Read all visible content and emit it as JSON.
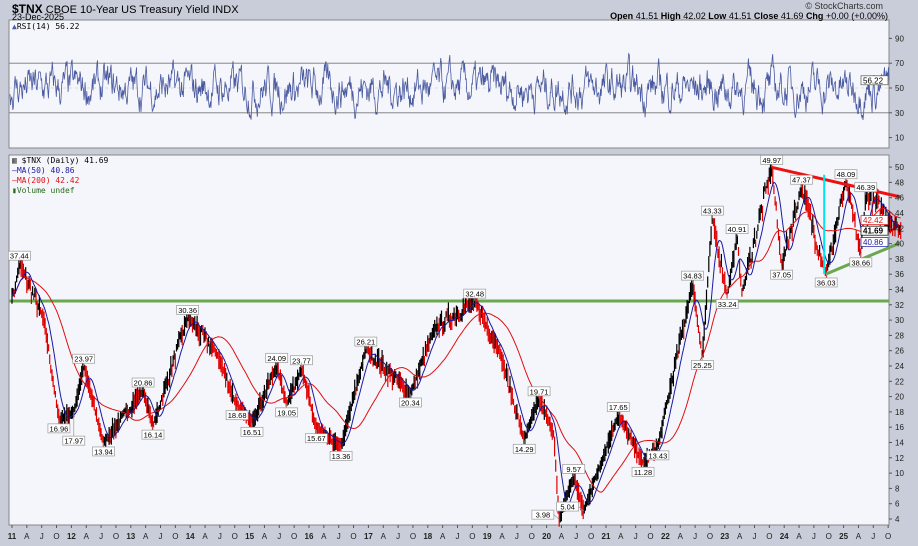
{
  "header": {
    "symbol": "$TNX",
    "name": "CBOE 10-Year US Treasury Yield INDX",
    "date": "23-Dec-2025",
    "watermark": "© StockCharts.com",
    "open_label": "Open",
    "open": "41.51",
    "high_label": "High",
    "high": "42.02",
    "low_label": "Low",
    "low": "41.51",
    "close_label": "Close",
    "close": "41.69",
    "chg_label": "Chg",
    "chg": "+0.00 (+0.00%)"
  },
  "rsi_panel": {
    "legend": "RSI(14) 56.22",
    "last_value": "56.22",
    "yticks": [
      10,
      30,
      50,
      70,
      90
    ],
    "reference_lines": [
      30,
      70
    ],
    "ylim": [
      0,
      100
    ],
    "color": "#4a5aa0"
  },
  "price_panel": {
    "legend_main": "$TNX (Daily) 41.69",
    "legend_ma50": "MA(50) 40.86",
    "legend_ma200": "MA(200) 42.42",
    "legend_volume": "Volume undef",
    "last_price": "41.69",
    "last_ma50": "40.86",
    "last_ma200": "42.42",
    "colors": {
      "up": "#000000",
      "down": "#e00000",
      "ma50": "#1a1aa0",
      "ma200": "#e01010",
      "support": "#6aa84f",
      "resistance": "#ee1111",
      "vertical": "#00e5ee"
    }
  },
  "x_axis": {
    "labels": [
      "11",
      "A",
      "J",
      "O",
      "12",
      "A",
      "J",
      "O",
      "13",
      "A",
      "J",
      "O",
      "14",
      "A",
      "J",
      "O",
      "15",
      "A",
      "J",
      "O",
      "16",
      "A",
      "J",
      "O",
      "17",
      "A",
      "J",
      "O",
      "18",
      "A",
      "J",
      "O",
      "19",
      "A",
      "J",
      "O",
      "20",
      "A",
      "J",
      "O",
      "21",
      "A",
      "J",
      "O",
      "22",
      "A",
      "J",
      "O",
      "23",
      "A",
      "J",
      "O",
      "24",
      "A",
      "J",
      "O",
      "25",
      "A",
      "J",
      "O"
    ]
  },
  "chart_data": {
    "type": "line",
    "title": "$TNX CBOE 10-Year US Treasury Yield INDX",
    "ylim": [
      2,
      52
    ],
    "yticks": [
      4,
      6,
      8,
      10,
      12,
      14,
      16,
      18,
      20,
      22,
      24,
      26,
      28,
      30,
      32,
      34,
      36,
      38,
      40,
      42,
      44,
      46,
      48,
      50
    ],
    "grid": false,
    "series": [
      {
        "name": "$TNX (Daily)",
        "points": [
          [
            "2011-01",
            33.5
          ],
          [
            "2011-02",
            37.44
          ],
          [
            "2011-07",
            30.0
          ],
          [
            "2011-10",
            16.96
          ],
          [
            "2012-01",
            17.97
          ],
          [
            "2012-03",
            23.97
          ],
          [
            "2012-07",
            13.94
          ],
          [
            "2013-03",
            20.86
          ],
          [
            "2013-05",
            16.14
          ],
          [
            "2013-12",
            30.36
          ],
          [
            "2014-06",
            25.5
          ],
          [
            "2014-10",
            18.68
          ],
          [
            "2015-01",
            16.51
          ],
          [
            "2015-06",
            24.09
          ],
          [
            "2015-08",
            19.05
          ],
          [
            "2015-11",
            23.77
          ],
          [
            "2016-02",
            15.67
          ],
          [
            "2016-07",
            13.36
          ],
          [
            "2016-12",
            26.21
          ],
          [
            "2017-09",
            20.34
          ],
          [
            "2018-02",
            29.0
          ],
          [
            "2018-10",
            32.48
          ],
          [
            "2019-03",
            26.0
          ],
          [
            "2019-08",
            14.29
          ],
          [
            "2019-11",
            19.71
          ],
          [
            "2020-02",
            15.0
          ],
          [
            "2020-03",
            3.98
          ],
          [
            "2020-06",
            9.57
          ],
          [
            "2020-08",
            5.04
          ],
          [
            "2021-03",
            17.65
          ],
          [
            "2021-08",
            11.28
          ],
          [
            "2021-11",
            13.43
          ],
          [
            "2022-06",
            34.83
          ],
          [
            "2022-08",
            25.25
          ],
          [
            "2022-10",
            43.33
          ],
          [
            "2023-01",
            33.24
          ],
          [
            "2023-03",
            40.91
          ],
          [
            "2023-04",
            33.5
          ],
          [
            "2023-10",
            49.97
          ],
          [
            "2023-12",
            37.05
          ],
          [
            "2024-04",
            47.37
          ],
          [
            "2024-09",
            36.03
          ],
          [
            "2025-01",
            48.09
          ],
          [
            "2025-04",
            38.66
          ],
          [
            "2025-05",
            46.39
          ],
          [
            "2025-12",
            41.69
          ]
        ]
      }
    ],
    "annotations": [
      [
        "2011-02",
        "37.44",
        "high"
      ],
      [
        "2011-10",
        "16.96",
        "low"
      ],
      [
        "2012-01",
        "17.97",
        "low"
      ],
      [
        "2012-03",
        "23.97",
        "high"
      ],
      [
        "2012-07",
        "13.94",
        "low"
      ],
      [
        "2013-03",
        "20.86",
        "high"
      ],
      [
        "2013-05",
        "16.14",
        "low"
      ],
      [
        "2013-12",
        "30.36",
        "high"
      ],
      [
        "2014-10",
        "18.68",
        "low"
      ],
      [
        "2015-01",
        "16.51",
        "low"
      ],
      [
        "2015-06",
        "24.09",
        "high"
      ],
      [
        "2015-08",
        "19.05",
        "low"
      ],
      [
        "2015-11",
        "23.77",
        "high"
      ],
      [
        "2016-02",
        "15.67",
        "low"
      ],
      [
        "2016-07",
        "13.36",
        "low"
      ],
      [
        "2016-12",
        "26.21",
        "high"
      ],
      [
        "2017-09",
        "20.34",
        "low"
      ],
      [
        "2018-10",
        "32.48",
        "high"
      ],
      [
        "2019-08",
        "14.29",
        "low"
      ],
      [
        "2019-11",
        "19.71",
        "high"
      ],
      [
        "2020-03",
        "3.98",
        "low"
      ],
      [
        "2020-06",
        "9.57",
        "high"
      ],
      [
        "2020-08",
        "5.04",
        "low"
      ],
      [
        "2021-03",
        "17.65",
        "high"
      ],
      [
        "2021-08",
        "11.28",
        "low"
      ],
      [
        "2021-11",
        "13.43",
        "low"
      ],
      [
        "2022-06",
        "34.83",
        "high"
      ],
      [
        "2022-08",
        "25.25",
        "low"
      ],
      [
        "2022-10",
        "43.33",
        "high"
      ],
      [
        "2023-01",
        "33.24",
        "low"
      ],
      [
        "2023-03",
        "40.91",
        "high"
      ],
      [
        "2023-10",
        "49.97",
        "high"
      ],
      [
        "2023-12",
        "37.05",
        "low"
      ],
      [
        "2024-04",
        "47.37",
        "high"
      ],
      [
        "2024-09",
        "36.03",
        "low"
      ],
      [
        "2025-01",
        "48.09",
        "high"
      ],
      [
        "2025-04",
        "38.66",
        "low"
      ],
      [
        "2025-05",
        "46.39",
        "high"
      ]
    ],
    "trendlines": {
      "horizontal_support": 32.5,
      "resistance": [
        [
          "2023-10",
          49.97
        ],
        [
          "2025-12",
          46.1
        ]
      ],
      "support": [
        [
          "2024-09",
          36.03
        ],
        [
          "2025-12",
          40.1
        ]
      ],
      "vertical": [
        "2024-09",
        49.0,
        36.03
      ]
    }
  }
}
